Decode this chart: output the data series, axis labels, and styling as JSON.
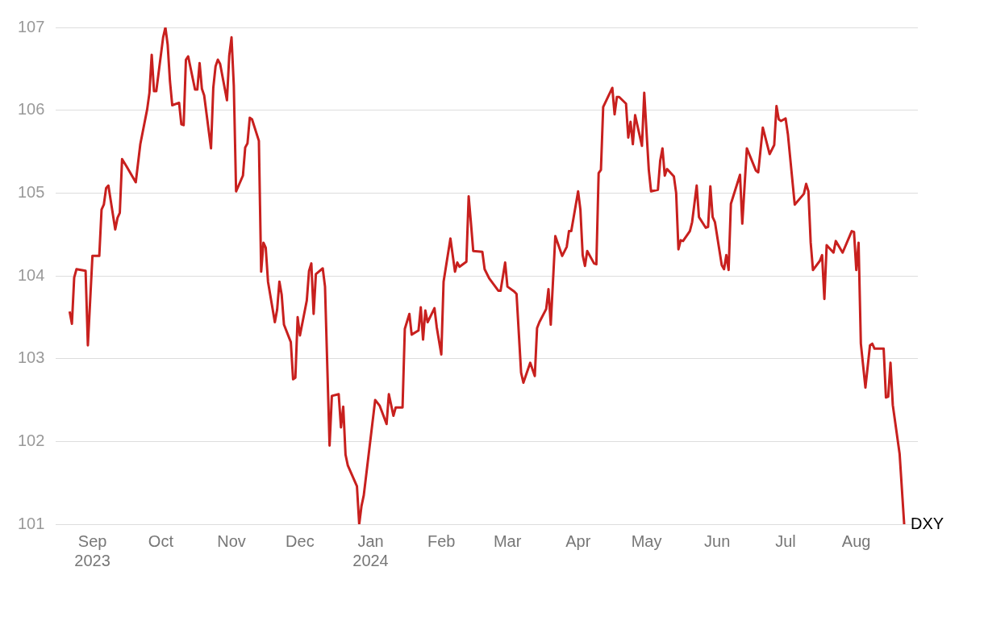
{
  "chart_data": {
    "type": "line",
    "xlim": [
      "2023-08-16",
      "2024-08-28"
    ],
    "xticks": [
      {
        "value": "2023-09-01",
        "label": "Sep 2023"
      },
      {
        "value": "2023-10-01",
        "label": "Oct"
      },
      {
        "value": "2023-11-01",
        "label": "Nov"
      },
      {
        "value": "2023-12-01",
        "label": "Dec"
      },
      {
        "value": "2024-01-01",
        "label": "Jan 2024"
      },
      {
        "value": "2024-02-01",
        "label": "Feb"
      },
      {
        "value": "2024-03-01",
        "label": "Mar"
      },
      {
        "value": "2024-04-01",
        "label": "Apr"
      },
      {
        "value": "2024-05-01",
        "label": "May"
      },
      {
        "value": "2024-06-01",
        "label": "Jun"
      },
      {
        "value": "2024-07-01",
        "label": "Jul"
      },
      {
        "value": "2024-08-01",
        "label": "Aug"
      }
    ],
    "ylim": [
      101,
      107
    ],
    "yticks": [
      101,
      102,
      103,
      104,
      105,
      106,
      107
    ],
    "grid": "y",
    "series": [
      {
        "name": "DXY",
        "color": "#c8201e",
        "x": [
          "2023-08-22",
          "2023-08-23",
          "2023-08-24",
          "2023-08-25",
          "2023-08-29",
          "2023-08-30",
          "2023-09-01",
          "2023-09-04",
          "2023-09-05",
          "2023-09-06",
          "2023-09-07",
          "2023-09-08",
          "2023-09-11",
          "2023-09-12",
          "2023-09-13",
          "2023-09-14",
          "2023-09-16",
          "2023-09-20",
          "2023-09-22",
          "2023-09-25",
          "2023-09-26",
          "2023-09-27",
          "2023-09-28",
          "2023-09-29",
          "2023-10-02",
          "2023-10-03",
          "2023-10-04",
          "2023-10-05",
          "2023-10-06",
          "2023-10-09",
          "2023-10-10",
          "2023-10-11",
          "2023-10-12",
          "2023-10-13",
          "2023-10-16",
          "2023-10-17",
          "2023-10-18",
          "2023-10-19",
          "2023-10-20",
          "2023-10-23",
          "2023-10-24",
          "2023-10-25",
          "2023-10-26",
          "2023-10-27",
          "2023-10-30",
          "2023-10-31",
          "2023-11-01",
          "2023-11-02",
          "2023-11-03",
          "2023-11-06",
          "2023-11-07",
          "2023-11-08",
          "2023-11-09",
          "2023-11-10",
          "2023-11-13",
          "2023-11-14",
          "2023-11-15",
          "2023-11-16",
          "2023-11-17",
          "2023-11-20",
          "2023-11-21",
          "2023-11-22",
          "2023-11-23",
          "2023-11-24",
          "2023-11-27",
          "2023-11-28",
          "2023-11-29",
          "2023-11-30",
          "2023-12-01",
          "2023-12-04",
          "2023-12-05",
          "2023-12-06",
          "2023-12-07",
          "2023-12-08",
          "2023-12-11",
          "2023-12-12",
          "2023-12-14",
          "2023-12-15",
          "2023-12-18",
          "2023-12-19",
          "2023-12-20",
          "2023-12-21",
          "2023-12-22",
          "2023-12-26",
          "2023-12-27",
          "2023-12-28",
          "2023-12-29",
          "2024-01-03",
          "2024-01-05",
          "2024-01-08",
          "2024-01-09",
          "2024-01-11",
          "2024-01-12",
          "2024-01-15",
          "2024-01-16",
          "2024-01-18",
          "2024-01-19",
          "2024-01-22",
          "2024-01-23",
          "2024-01-24",
          "2024-01-25",
          "2024-01-26",
          "2024-01-29",
          "2024-01-30",
          "2024-02-01",
          "2024-02-02",
          "2024-02-05",
          "2024-02-07",
          "2024-02-08",
          "2024-02-09",
          "2024-02-12",
          "2024-02-13",
          "2024-02-14",
          "2024-02-15",
          "2024-02-19",
          "2024-02-20",
          "2024-02-22",
          "2024-02-26",
          "2024-02-27",
          "2024-02-29",
          "2024-03-01",
          "2024-03-04",
          "2024-03-05",
          "2024-03-07",
          "2024-03-08",
          "2024-03-11",
          "2024-03-13",
          "2024-03-14",
          "2024-03-15",
          "2024-03-18",
          "2024-03-19",
          "2024-03-20",
          "2024-03-22",
          "2024-03-25",
          "2024-03-27",
          "2024-03-28",
          "2024-03-29",
          "2024-04-01",
          "2024-04-02",
          "2024-04-03",
          "2024-04-04",
          "2024-04-05",
          "2024-04-08",
          "2024-04-09",
          "2024-04-10",
          "2024-04-11",
          "2024-04-12",
          "2024-04-16",
          "2024-04-17",
          "2024-04-18",
          "2024-04-19",
          "2024-04-22",
          "2024-04-23",
          "2024-04-24",
          "2024-04-25",
          "2024-04-26",
          "2024-04-29",
          "2024-04-30",
          "2024-05-02",
          "2024-05-03",
          "2024-05-06",
          "2024-05-07",
          "2024-05-08",
          "2024-05-09",
          "2024-05-10",
          "2024-05-13",
          "2024-05-14",
          "2024-05-15",
          "2024-05-16",
          "2024-05-17",
          "2024-05-20",
          "2024-05-21",
          "2024-05-23",
          "2024-05-24",
          "2024-05-27",
          "2024-05-28",
          "2024-05-29",
          "2024-05-30",
          "2024-05-31",
          "2024-06-03",
          "2024-06-04",
          "2024-06-05",
          "2024-06-06",
          "2024-06-07",
          "2024-06-11",
          "2024-06-12",
          "2024-06-14",
          "2024-06-18",
          "2024-06-19",
          "2024-06-21",
          "2024-06-24",
          "2024-06-26",
          "2024-06-27",
          "2024-06-28",
          "2024-06-29",
          "2024-07-01",
          "2024-07-02",
          "2024-07-05",
          "2024-07-09",
          "2024-07-10",
          "2024-07-11",
          "2024-07-12",
          "2024-07-13",
          "2024-07-16",
          "2024-07-17",
          "2024-07-18",
          "2024-07-19",
          "2024-07-22",
          "2024-07-23",
          "2024-07-26",
          "2024-07-30",
          "2024-07-31",
          "2024-08-01",
          "2024-08-02",
          "2024-08-03",
          "2024-08-05",
          "2024-08-07",
          "2024-08-08",
          "2024-08-09",
          "2024-08-13",
          "2024-08-14",
          "2024-08-15",
          "2024-08-16",
          "2024-08-17",
          "2024-08-20",
          "2024-08-22"
        ],
        "values": [
          103.57,
          103.42,
          103.98,
          104.08,
          104.06,
          103.16,
          104.24,
          104.24,
          104.8,
          104.86,
          105.06,
          105.09,
          104.56,
          104.7,
          104.76,
          105.41,
          105.32,
          105.13,
          105.59,
          106.01,
          106.21,
          106.67,
          106.23,
          106.23,
          106.88,
          107.0,
          106.79,
          106.35,
          106.06,
          106.09,
          105.83,
          105.82,
          106.61,
          106.65,
          106.25,
          106.25,
          106.57,
          106.26,
          106.18,
          105.54,
          106.27,
          106.53,
          106.61,
          106.56,
          106.12,
          106.66,
          106.88,
          106.3,
          105.02,
          105.21,
          105.55,
          105.6,
          105.91,
          105.89,
          105.63,
          104.05,
          104.4,
          104.34,
          103.93,
          103.44,
          103.59,
          103.93,
          103.77,
          103.41,
          103.2,
          102.75,
          102.77,
          103.5,
          103.28,
          103.7,
          104.06,
          104.15,
          103.54,
          104.02,
          104.09,
          103.87,
          101.95,
          102.55,
          102.57,
          102.17,
          102.42,
          101.84,
          101.71,
          101.46,
          101.0,
          101.22,
          101.35,
          102.5,
          102.43,
          102.21,
          102.57,
          102.31,
          102.41,
          102.41,
          103.36,
          103.54,
          103.29,
          103.34,
          103.62,
          103.23,
          103.58,
          103.44,
          103.61,
          103.38,
          103.05,
          103.93,
          104.45,
          104.05,
          104.16,
          104.11,
          104.17,
          104.96,
          104.64,
          104.3,
          104.29,
          104.08,
          103.97,
          103.82,
          103.82,
          104.16,
          103.87,
          103.81,
          103.78,
          102.83,
          102.71,
          102.95,
          102.79,
          103.37,
          103.44,
          103.6,
          103.84,
          103.41,
          104.48,
          104.24,
          104.35,
          104.54,
          104.54,
          105.02,
          104.8,
          104.25,
          104.12,
          104.3,
          104.15,
          104.14,
          105.24,
          105.28,
          106.04,
          106.27,
          105.95,
          106.16,
          106.16,
          106.08,
          105.67,
          105.86,
          105.59,
          105.94,
          105.57,
          106.21,
          105.28,
          105.02,
          105.04,
          105.39,
          105.54,
          105.21,
          105.29,
          105.2,
          105.0,
          104.32,
          104.43,
          104.42,
          104.54,
          104.65,
          105.09,
          104.71,
          104.58,
          104.59,
          105.08,
          104.71,
          104.65,
          104.13,
          104.08,
          104.25,
          104.07,
          104.87,
          105.22,
          104.63,
          105.54,
          105.27,
          105.25,
          105.79,
          105.47,
          105.58,
          106.05,
          105.89,
          105.87,
          105.9,
          105.71,
          104.86,
          104.99,
          105.11,
          105.02,
          104.4,
          104.07,
          104.18,
          104.25,
          103.72,
          104.37,
          104.28,
          104.42,
          104.28,
          104.54,
          104.53,
          104.07,
          104.4,
          103.18,
          102.65,
          103.16,
          103.18,
          103.12,
          103.12,
          102.53,
          102.54,
          102.95,
          102.44,
          101.85,
          101.0
        ]
      }
    ]
  }
}
